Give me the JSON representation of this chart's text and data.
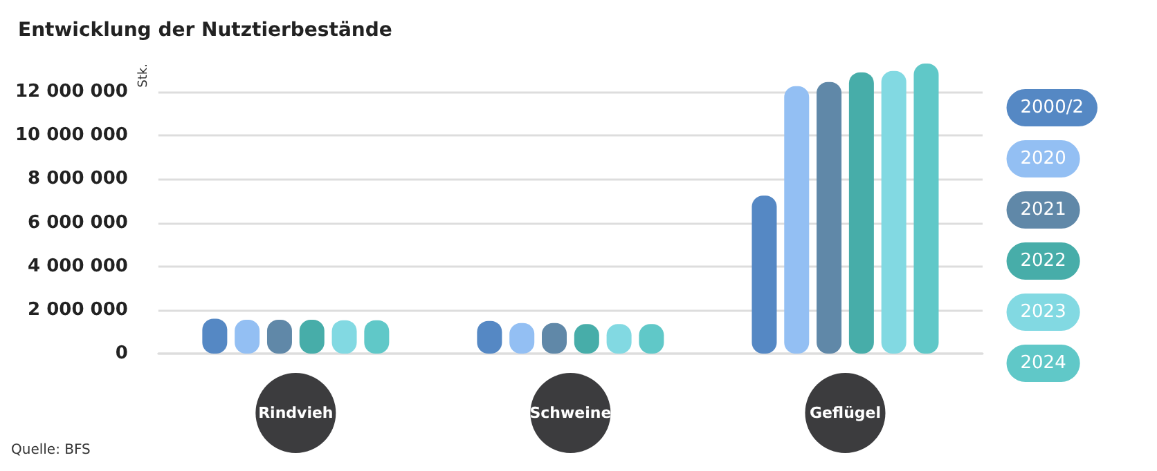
{
  "chart_data": {
    "type": "bar",
    "title": "Entwicklung der Nutztierbestände",
    "ylabel": "Stk.",
    "categories": [
      "Rindvieh",
      "Schweine",
      "Geflügel"
    ],
    "series": [
      {
        "name": "2000/2",
        "color": "#5588c4",
        "values": [
          1600000,
          1500000,
          7240000
        ]
      },
      {
        "name": "2020",
        "color": "#93bff3",
        "values": [
          1550000,
          1400000,
          12260000
        ]
      },
      {
        "name": "2021",
        "color": "#6088a8",
        "values": [
          1550000,
          1400000,
          12450000
        ]
      },
      {
        "name": "2022",
        "color": "#47ada9",
        "values": [
          1550000,
          1350000,
          12900000
        ]
      },
      {
        "name": "2023",
        "color": "#82d9e2",
        "values": [
          1530000,
          1350000,
          12960000
        ]
      },
      {
        "name": "2024",
        "color": "#60c8c8",
        "values": [
          1530000,
          1350000,
          13300000
        ]
      }
    ],
    "ylim": [
      0,
      13300000
    ],
    "yticks": [
      0,
      2000000,
      4000000,
      6000000,
      8000000,
      10000000,
      12000000
    ],
    "grid": "y",
    "legend": "right",
    "annotations": [
      "Quelle: BFS"
    ]
  }
}
